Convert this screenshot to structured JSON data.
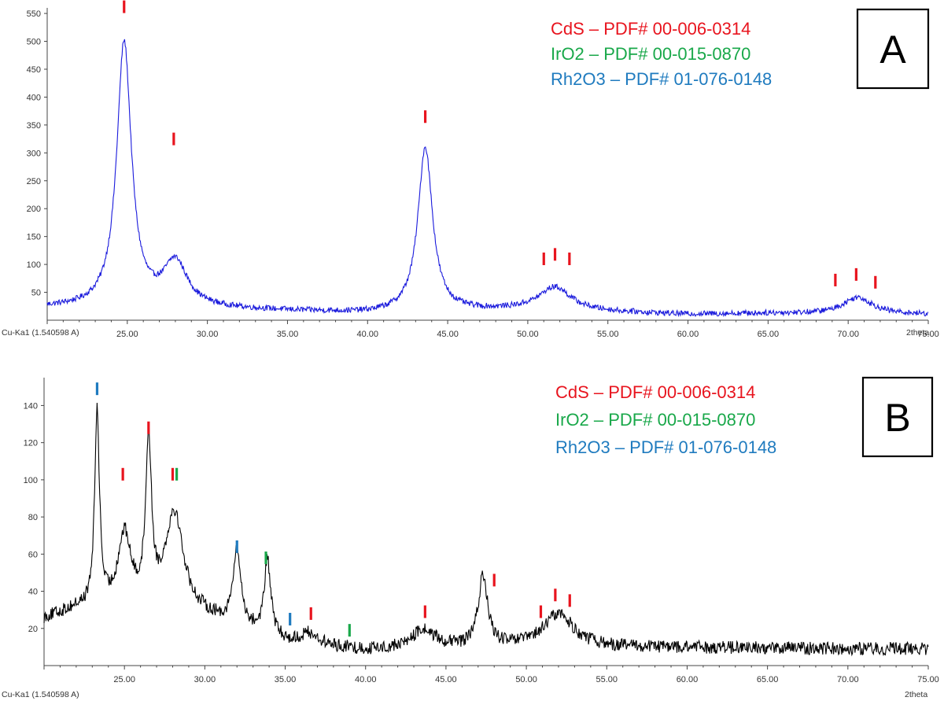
{
  "chart_data": [
    {
      "type": "line",
      "panel": "A",
      "xlabel": "2theta",
      "radiation_label": "Cu-Ka1 (1.540598 A)",
      "xlim": [
        20.0,
        75.0
      ],
      "ylim": [
        0,
        560
      ],
      "x_ticks": [
        25,
        30,
        35,
        40,
        45,
        50,
        55,
        60,
        65,
        70,
        75
      ],
      "x_tick_labels": [
        "25.00",
        "30.00",
        "35.00",
        "40.00",
        "45.00",
        "50.00",
        "55.00",
        "60.00",
        "65.00",
        "70.00",
        "75.00"
      ],
      "y_ticks": [
        50,
        100,
        150,
        200,
        250,
        300,
        350,
        400,
        450,
        500,
        550
      ],
      "y_tick_labels": [
        "50",
        "100",
        "150",
        "200",
        "250",
        "300",
        "350",
        "400",
        "450",
        "500",
        "550"
      ],
      "line_color": "#1a1adc",
      "noise": 5,
      "baseline": [
        [
          20,
          22
        ],
        [
          30,
          20
        ],
        [
          40,
          12
        ],
        [
          50,
          18
        ],
        [
          60,
          10
        ],
        [
          65,
          12
        ],
        [
          75,
          10
        ]
      ],
      "peaks": [
        {
          "x": 24.8,
          "h": 475,
          "w": 0.55
        },
        {
          "x": 28.0,
          "h": 80,
          "w": 0.9
        },
        {
          "x": 43.6,
          "h": 295,
          "w": 0.55
        },
        {
          "x": 51.7,
          "h": 42,
          "w": 1.2
        },
        {
          "x": 70.6,
          "h": 30,
          "w": 1.1
        }
      ],
      "markers": [
        {
          "x": 24.8,
          "y": 562,
          "color": "#e8141e"
        },
        {
          "x": 27.9,
          "y": 325,
          "color": "#e8141e"
        },
        {
          "x": 43.6,
          "y": 365,
          "color": "#e8141e"
        },
        {
          "x": 51.0,
          "y": 110,
          "color": "#e8141e"
        },
        {
          "x": 51.7,
          "y": 118,
          "color": "#e8141e"
        },
        {
          "x": 52.6,
          "y": 110,
          "color": "#e8141e"
        },
        {
          "x": 69.2,
          "y": 72,
          "color": "#e8141e"
        },
        {
          "x": 70.5,
          "y": 82,
          "color": "#e8141e"
        },
        {
          "x": 71.7,
          "y": 68,
          "color": "#e8141e"
        }
      ],
      "legend": [
        {
          "label": "CdS – PDF# 00-006-0314",
          "color": "#e8141e"
        },
        {
          "label": "IrO2 – PDF# 00-015-0870",
          "color": "#19a84a"
        },
        {
          "label": "Rh2O3 – PDF# 01-076-0148",
          "color": "#1f7bbf"
        }
      ],
      "panel_letter": "A"
    },
    {
      "type": "line",
      "panel": "B",
      "xlabel": "2theta",
      "radiation_label": "Cu-Ka1 (1.540598 A)",
      "xlim": [
        20.0,
        75.0
      ],
      "ylim": [
        0,
        155
      ],
      "x_ticks": [
        25,
        30,
        35,
        40,
        45,
        50,
        55,
        60,
        65,
        70,
        75
      ],
      "x_tick_labels": [
        "25.00",
        "30.00",
        "35.00",
        "40.00",
        "45.00",
        "50.00",
        "55.00",
        "60.00",
        "65.00",
        "70.00",
        "75.00"
      ],
      "y_ticks": [
        20,
        40,
        60,
        80,
        100,
        120,
        140
      ],
      "y_tick_labels": [
        "20",
        "40",
        "60",
        "80",
        "100",
        "120",
        "140"
      ],
      "line_color": "#000000",
      "noise": 3.5,
      "baseline": [
        [
          20,
          25
        ],
        [
          22,
          30
        ],
        [
          30,
          25
        ],
        [
          35,
          12
        ],
        [
          40,
          8
        ],
        [
          50,
          10
        ],
        [
          75,
          9
        ]
      ],
      "peaks": [
        {
          "x": 23.3,
          "h": 105,
          "w": 0.18
        },
        {
          "x": 25.0,
          "h": 40,
          "w": 0.5
        },
        {
          "x": 26.5,
          "h": 88,
          "w": 0.22
        },
        {
          "x": 28.1,
          "h": 55,
          "w": 0.7
        },
        {
          "x": 32.0,
          "h": 40,
          "w": 0.3
        },
        {
          "x": 33.9,
          "h": 40,
          "w": 0.25
        },
        {
          "x": 36.5,
          "h": 6,
          "w": 0.6
        },
        {
          "x": 43.6,
          "h": 10,
          "w": 0.9
        },
        {
          "x": 47.3,
          "h": 38,
          "w": 0.35
        },
        {
          "x": 52.0,
          "h": 18,
          "w": 1.1
        }
      ],
      "markers": [
        {
          "x": 23.3,
          "y": 149,
          "color": "#1f7bbf"
        },
        {
          "x": 24.9,
          "y": 103,
          "color": "#e8141e"
        },
        {
          "x": 26.5,
          "y": 128,
          "color": "#e8141e"
        },
        {
          "x": 28.0,
          "y": 103,
          "color": "#e8141e"
        },
        {
          "x": 28.25,
          "y": 103,
          "color": "#19a84a"
        },
        {
          "x": 32.0,
          "y": 64,
          "color": "#1f7bbf"
        },
        {
          "x": 33.8,
          "y": 58,
          "color": "#19a84a"
        },
        {
          "x": 35.3,
          "y": 25,
          "color": "#1f7bbf"
        },
        {
          "x": 36.6,
          "y": 28,
          "color": "#e8141e"
        },
        {
          "x": 39.0,
          "y": 19,
          "color": "#19a84a"
        },
        {
          "x": 43.7,
          "y": 29,
          "color": "#e8141e"
        },
        {
          "x": 48.0,
          "y": 46,
          "color": "#e8141e"
        },
        {
          "x": 50.9,
          "y": 29,
          "color": "#e8141e"
        },
        {
          "x": 51.8,
          "y": 38,
          "color": "#e8141e"
        },
        {
          "x": 52.7,
          "y": 35,
          "color": "#e8141e"
        }
      ],
      "legend": [
        {
          "label": "CdS – PDF# 00-006-0314",
          "color": "#e8141e"
        },
        {
          "label": "IrO2 – PDF# 00-015-0870",
          "color": "#19a84a"
        },
        {
          "label": "Rh2O3 – PDF# 01-076-0148",
          "color": "#1f7bbf"
        }
      ],
      "panel_letter": "B"
    }
  ]
}
